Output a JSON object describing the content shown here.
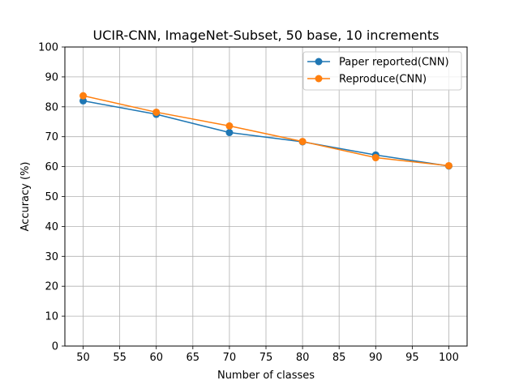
{
  "chart_data": {
    "type": "line",
    "title": "UCIR-CNN, ImageNet-Subset, 50 base, 10 increments",
    "xlabel": "Number of classes",
    "ylabel": "Accuracy (%)",
    "xlim": [
      47.5,
      102.5
    ],
    "ylim": [
      0,
      100
    ],
    "xticks": [
      50,
      55,
      60,
      65,
      70,
      75,
      80,
      85,
      90,
      95,
      100
    ],
    "yticks": [
      0,
      10,
      20,
      30,
      40,
      50,
      60,
      70,
      80,
      90,
      100
    ],
    "grid": true,
    "legend_position": "top-right",
    "x": [
      50,
      60,
      70,
      80,
      90,
      100
    ],
    "series": [
      {
        "name": "Paper reported(CNN)",
        "color": "#1f77b4",
        "marker": "circle",
        "values": [
          82.0,
          77.5,
          71.4,
          68.3,
          63.9,
          60.2
        ]
      },
      {
        "name": "Reproduce(CNN)",
        "color": "#ff7f0e",
        "marker": "circle",
        "values": [
          83.7,
          78.2,
          73.6,
          68.4,
          63.0,
          60.3
        ]
      }
    ]
  }
}
